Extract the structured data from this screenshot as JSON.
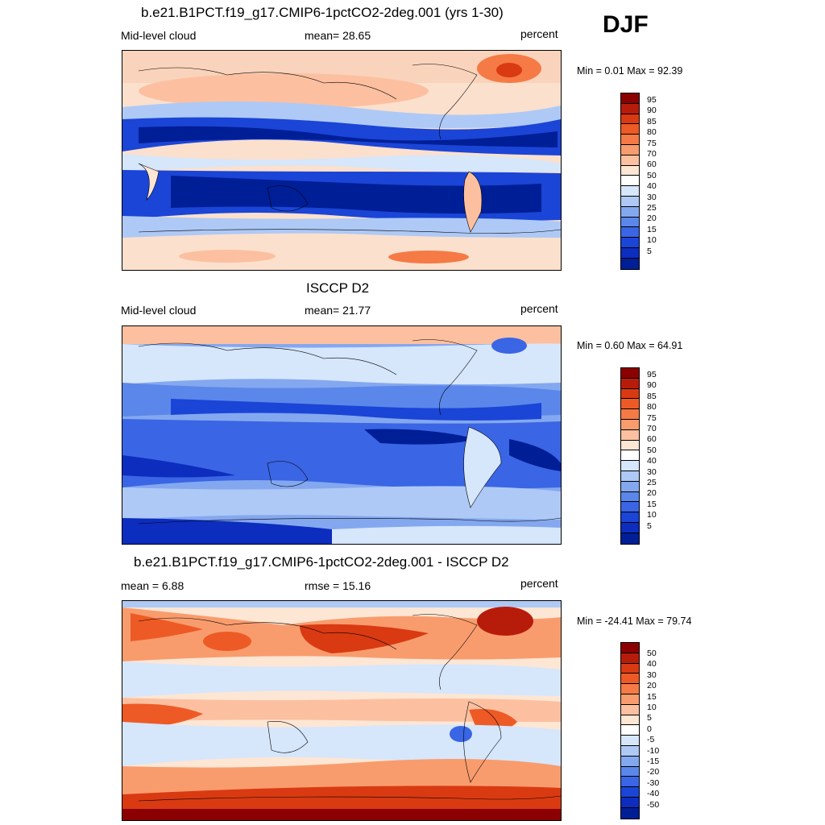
{
  "season": "DJF",
  "panels": [
    {
      "title": "b.e21.B1PCT.f19_g17.CMIP6-1pctCO2-2deg.001 (yrs 1-30)",
      "left_label": "Mid-level cloud",
      "center_label": "mean=  28.65",
      "units": "percent",
      "minmax": "Min =   0.01 Max =  92.39",
      "colorbar_labels": [
        "95",
        "90",
        "85",
        "80",
        "75",
        "70",
        "60",
        "50",
        "40",
        "30",
        "25",
        "20",
        "15",
        "10",
        "5"
      ],
      "colorbar_colors": [
        "#8b0000",
        "#b71c0b",
        "#d93a12",
        "#ee5a25",
        "#f57a45",
        "#f99c6d",
        "#fcc0a0",
        "#fde6d4",
        "#ffffff",
        "#d6e6fb",
        "#aec9f5",
        "#84a8ef",
        "#5b87ea",
        "#3a65e4",
        "#1a45d6",
        "#0d2dbf",
        "#001e96"
      ]
    },
    {
      "title": "ISCCP D2",
      "left_label": "Mid-level cloud",
      "center_label": "mean=  21.77",
      "units": "percent",
      "minmax": "Min =   0.60 Max =  64.91",
      "colorbar_labels": [
        "95",
        "90",
        "85",
        "80",
        "75",
        "70",
        "60",
        "50",
        "40",
        "30",
        "25",
        "20",
        "15",
        "10",
        "5"
      ],
      "colorbar_colors": [
        "#8b0000",
        "#b71c0b",
        "#d93a12",
        "#ee5a25",
        "#f57a45",
        "#f99c6d",
        "#fcc0a0",
        "#fde6d4",
        "#ffffff",
        "#d6e6fb",
        "#aec9f5",
        "#84a8ef",
        "#5b87ea",
        "#3a65e4",
        "#1a45d6",
        "#0d2dbf",
        "#001e96"
      ]
    },
    {
      "title": "b.e21.B1PCT.f19_g17.CMIP6-1pctCO2-2deg.001 - ISCCP D2",
      "left_label": "mean =   6.88",
      "center_label": "rmse =  15.16",
      "units": "percent",
      "minmax": "Min = -24.41 Max =  79.74",
      "colorbar_labels": [
        "50",
        "40",
        "30",
        "20",
        "15",
        "10",
        "5",
        "0",
        "-5",
        "-10",
        "-15",
        "-20",
        "-30",
        "-40",
        "-50"
      ],
      "colorbar_colors": [
        "#8b0000",
        "#b71c0b",
        "#d93a12",
        "#ee5a25",
        "#f57a45",
        "#f99c6d",
        "#fcc0a0",
        "#fde6d4",
        "#ffffff",
        "#d6e6fb",
        "#aec9f5",
        "#84a8ef",
        "#5b87ea",
        "#3a65e4",
        "#1a45d6",
        "#0d2dbf",
        "#001e96"
      ]
    }
  ]
}
